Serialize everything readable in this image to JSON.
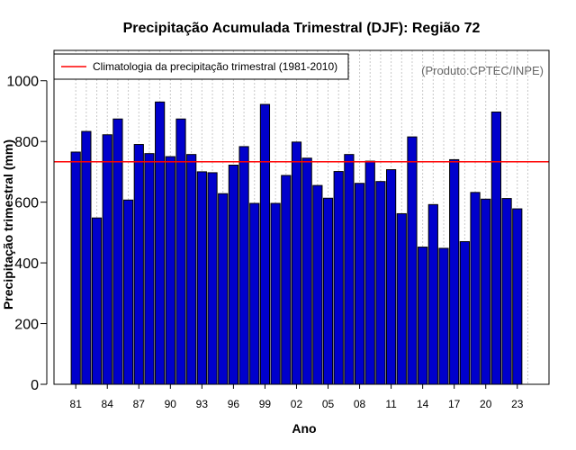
{
  "chart_data": {
    "type": "bar",
    "title": "Precipitação Acumulada Trimestral (DJF): Região 72",
    "xlabel": "Ano",
    "ylabel": "Precipitação trimestral (mm)",
    "ylim": [
      0,
      1100
    ],
    "yticks": [
      0,
      200,
      400,
      600,
      800,
      1000
    ],
    "xtick_labels": [
      "81",
      "84",
      "87",
      "90",
      "93",
      "96",
      "99",
      "02",
      "05",
      "08",
      "11",
      "14",
      "17",
      "20",
      "23"
    ],
    "years": [
      1981,
      1982,
      1983,
      1984,
      1985,
      1986,
      1987,
      1988,
      1989,
      1990,
      1991,
      1992,
      1993,
      1994,
      1995,
      1996,
      1997,
      1998,
      1999,
      2000,
      2001,
      2002,
      2003,
      2004,
      2005,
      2006,
      2007,
      2008,
      2009,
      2010,
      2011,
      2012,
      2013,
      2014,
      2015,
      2016,
      2017,
      2018,
      2019,
      2020,
      2021,
      2022,
      2023
    ],
    "values": [
      765,
      833,
      548,
      822,
      874,
      607,
      790,
      760,
      930,
      750,
      874,
      757,
      700,
      697,
      628,
      722,
      783,
      596,
      922,
      596,
      688,
      798,
      745,
      655,
      613,
      701,
      757,
      662,
      735,
      668,
      707,
      562,
      815,
      452,
      592,
      448,
      740,
      470,
      632,
      610,
      897,
      612,
      578
    ],
    "series_name": "Precipitação trimestral",
    "reference_line": {
      "value": 733,
      "label": "Climatologia da precipitação trimestral (1981-2010)",
      "color": "#ff0000"
    },
    "bar_color": "#0000cc",
    "grid": "vertical dotted",
    "legend_position": "top-left",
    "credit": "(Produto:CPTEC/INPE)"
  }
}
